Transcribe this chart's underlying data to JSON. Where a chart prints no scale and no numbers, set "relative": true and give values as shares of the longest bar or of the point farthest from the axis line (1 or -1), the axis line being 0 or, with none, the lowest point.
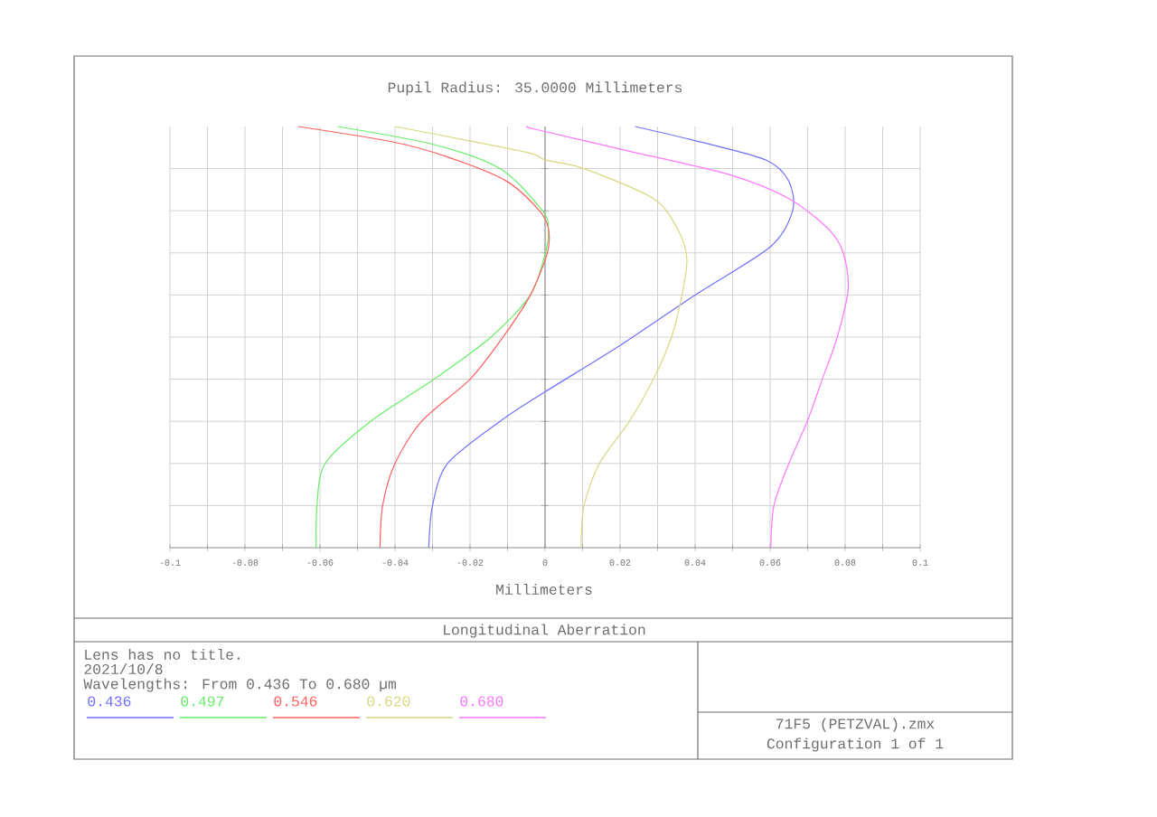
{
  "chart_data": {
    "type": "line",
    "title": "Pupil Radius: 35.0000 Millimeters",
    "xlabel": "Millimeters",
    "annotations": [
      "Longitudinal Aberration",
      "Lens has no title.",
      "2021/10/8",
      "Wavelengths: From 0.436 To 0.680 µm",
      "71F5 (PETZVAL).zmx",
      "Configuration 1 of 1"
    ],
    "relative": true,
    "xlim": [
      -0.1,
      0.1
    ],
    "xticks": [
      -0.1,
      -0.08,
      -0.06,
      -0.04,
      -0.02,
      0,
      0.02,
      0.04,
      0.06,
      0.08,
      0.1
    ],
    "grid": true,
    "legend": "bottom left",
    "line_style": "solid",
    "marker": "none",
    "series": [
      {
        "name": "0.436",
        "color": "#7070ff",
        "x": [
          -0.031,
          -0.03,
          -0.026,
          -0.012,
          0,
          0.02,
          0.04,
          0.06,
          0.066,
          0.065,
          0.059,
          0.043,
          0.024
        ],
        "values": [
          0,
          0.1,
          0.2,
          0.3,
          0.37,
          0.48,
          0.6,
          0.714,
          0.8,
          0.87,
          0.92,
          0.96,
          1.0
        ]
      },
      {
        "name": "0.497",
        "color": "#66ee66",
        "x": [
          -0.061,
          -0.0608,
          -0.0586,
          -0.0465,
          -0.0296,
          -0.0144,
          -0.0039,
          0.0001,
          0.0009,
          -0.0007,
          -0.012,
          -0.0296,
          -0.0553
        ],
        "values": [
          0,
          0.1,
          0.2,
          0.3,
          0.4,
          0.5,
          0.6,
          0.7,
          0.757,
          0.8,
          0.9,
          0.957,
          1.0
        ]
      },
      {
        "name": "0.546",
        "color": "#ff6060",
        "x": [
          -0.044,
          -0.0433,
          -0.04,
          -0.0329,
          -0.02,
          -0.0112,
          -0.0039,
          0.0006,
          0.0009,
          -0.0015,
          -0.0104,
          -0.0264,
          -0.0409,
          -0.0658
        ],
        "values": [
          0,
          0.1,
          0.2,
          0.3,
          0.4,
          0.5,
          0.6,
          0.7,
          0.757,
          0.8,
          0.871,
          0.929,
          0.964,
          1.0
        ]
      },
      {
        "name": "0.620",
        "color": "#d8d880",
        "x": [
          0.0096,
          0.0104,
          0.0145,
          0.0225,
          0.0289,
          0.0337,
          0.0365,
          0.0378,
          0.0353,
          0.0289,
          0.0104,
          0,
          -0.0056,
          -0.04
        ],
        "values": [
          0,
          0.1,
          0.2,
          0.3,
          0.4,
          0.5,
          0.6,
          0.686,
          0.757,
          0.829,
          0.9,
          0.921,
          0.94,
          1.0
        ]
      },
      {
        "name": "0.680",
        "color": "#ff77ff",
        "x": [
          0.0602,
          0.061,
          0.065,
          0.0699,
          0.0739,
          0.0779,
          0.0808,
          0.0795,
          0.0755,
          0.065,
          0.049,
          0.0217,
          -0.0024,
          -0.0047
        ],
        "values": [
          0,
          0.1,
          0.2,
          0.3,
          0.4,
          0.5,
          0.614,
          0.7,
          0.757,
          0.829,
          0.886,
          0.943,
          0.993,
          1.0
        ]
      }
    ]
  }
}
